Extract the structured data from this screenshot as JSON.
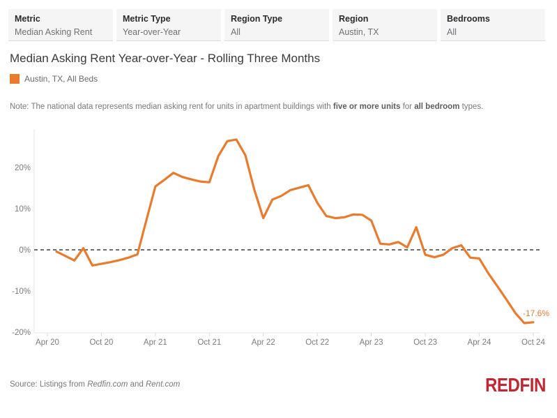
{
  "filters": [
    {
      "label": "Metric",
      "value": "Median Asking Rent"
    },
    {
      "label": "Metric Type",
      "value": "Year-over-Year"
    },
    {
      "label": "Region Type",
      "value": "All"
    },
    {
      "label": "Region",
      "value": "Austin, TX"
    },
    {
      "label": "Bedrooms",
      "value": "All"
    }
  ],
  "header": {
    "title": "Median Asking Rent Year-over-Year - Rolling Three Months",
    "legend_label": "Austin, TX, All Beds"
  },
  "note": {
    "prefix": "Note: The national data represents median asking rent for units in apartment buildings with ",
    "bold_1": "five or more units",
    "mid": " for ",
    "bold_2": "all bedroom",
    "suffix": " types."
  },
  "colors": {
    "series_orange": "#ea7b2d",
    "logo_red": "#c22731",
    "axis_text": "#7b7b7e",
    "zero_line": "#3f3f3f"
  },
  "chart_data": {
    "type": "line",
    "title": "Median Asking Rent Year-over-Year - Rolling Three Months",
    "x": [
      "May 20",
      "Jun 20",
      "Jul 20",
      "Aug 20",
      "Sep 20",
      "Oct 20",
      "Nov 20",
      "Dec 20",
      "Jan 21",
      "Feb 21",
      "Mar 21",
      "Apr 21",
      "May 21",
      "Jun 21",
      "Jul 21",
      "Aug 21",
      "Sep 21",
      "Oct 21",
      "Nov 21",
      "Dec 21",
      "Jan 22",
      "Feb 22",
      "Mar 22",
      "Apr 22",
      "May 22",
      "Jun 22",
      "Jul 22",
      "Aug 22",
      "Sep 22",
      "Oct 22",
      "Nov 22",
      "Dec 22",
      "Jan 23",
      "Feb 23",
      "Mar 23",
      "Apr 23",
      "May 23",
      "Jun 23",
      "Jul 23",
      "Aug 23",
      "Sep 23",
      "Oct 23",
      "Nov 23",
      "Dec 23",
      "Jan 24",
      "Feb 24",
      "Mar 24",
      "Apr 24",
      "May 24",
      "Jun 24",
      "Jul 24",
      "Aug 24",
      "Sep 24",
      "Oct 24"
    ],
    "series": [
      {
        "name": "Austin, TX, All Beds",
        "color": "#ea7b2d",
        "values": [
          -0.4,
          -1.5,
          -2.6,
          0.4,
          -3.8,
          -3.4,
          -3.0,
          -2.5,
          -1.9,
          -1.1,
          7.2,
          15.4,
          17.0,
          18.7,
          17.7,
          17.1,
          16.6,
          16.4,
          22.8,
          26.4,
          26.8,
          23.0,
          14.6,
          7.7,
          12.2,
          13.1,
          14.5,
          15.1,
          15.7,
          11.4,
          8.2,
          7.7,
          7.9,
          8.6,
          8.5,
          7.1,
          1.5,
          1.3,
          1.9,
          0.6,
          5.5,
          -1.2,
          -1.8,
          -1.2,
          0.4,
          1.1,
          -1.9,
          -2.1,
          -5.7,
          -8.8,
          -12.0,
          -15.3,
          -17.8,
          -17.6
        ]
      }
    ],
    "x_tick_labels": [
      "Apr 20",
      "Oct 20",
      "Apr 21",
      "Oct 21",
      "Apr 22",
      "Oct 22",
      "Apr 23",
      "Oct 23",
      "Apr 24",
      "Oct 24"
    ],
    "x_tick_month_offsets": [
      0,
      6,
      12,
      18,
      24,
      30,
      36,
      42,
      48,
      54
    ],
    "y_ticks": [
      20,
      10,
      0,
      -10,
      -20
    ],
    "y_tick_labels": [
      "20%",
      "10%",
      "0%",
      "-10%",
      "-20%"
    ],
    "ylim": [
      -20.2,
      29.3
    ],
    "grid": "none",
    "zero_line": "dashed",
    "legend_position": "top-left",
    "end_label": "-17.6%",
    "ylabel": "",
    "xlabel": ""
  },
  "footer": {
    "source_prefix": "Source: Listings from ",
    "source_site_1": "Redfin.com",
    "source_connector": " and ",
    "source_site_2": "Rent.com",
    "logo_text": "REDFIN"
  }
}
